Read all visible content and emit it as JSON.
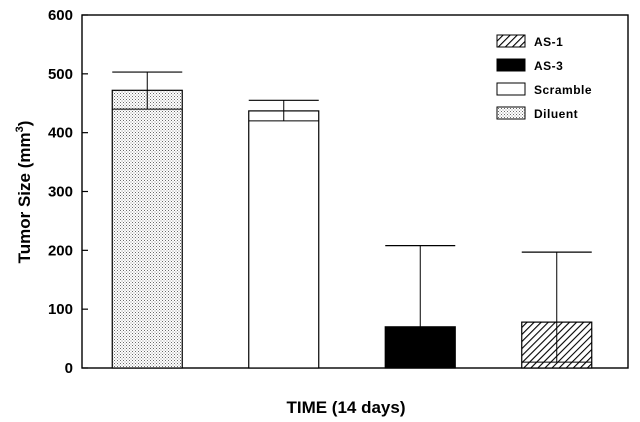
{
  "chart_data": {
    "type": "bar",
    "xlabel": "TIME (14 days)",
    "ylabel": "Tumor Size (mm",
    "ylabel_sup": "3",
    "ylabel_close": ")",
    "ylim": [
      0,
      600
    ],
    "yticks": [
      "0",
      "100",
      "200",
      "300",
      "400",
      "500",
      "600"
    ],
    "legend_position": "top-right",
    "legend": [
      {
        "name": "AS-1",
        "pattern": "hatch"
      },
      {
        "name": "AS-3",
        "pattern": "solid"
      },
      {
        "name": "Scramble",
        "pattern": "empty"
      },
      {
        "name": "Diluent",
        "pattern": "dots"
      }
    ],
    "bars": [
      {
        "series": "Diluent",
        "value": 472,
        "error_upper": 503,
        "error_lower": 440
      },
      {
        "series": "Scramble",
        "value": 437,
        "error_upper": 455,
        "error_lower": 420
      },
      {
        "series": "AS-3",
        "value": 70,
        "error_upper": 208,
        "error_lower": 0
      },
      {
        "series": "AS-1",
        "value": 78,
        "error_upper": 197,
        "error_lower": 10
      }
    ]
  }
}
